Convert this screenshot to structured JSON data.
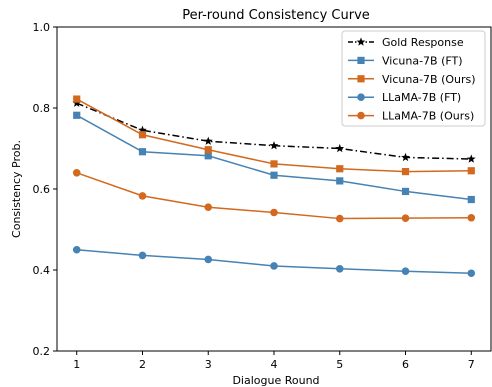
{
  "chart_data": {
    "type": "line",
    "title": "Per-round Consistency Curve",
    "xlabel": "Dialogue Round",
    "ylabel": "Consistency Prob.",
    "xlim": [
      0.7,
      7.3
    ],
    "ylim": [
      0.2,
      1.0
    ],
    "xticks": [
      "1",
      "2",
      "3",
      "4",
      "5",
      "6",
      "7"
    ],
    "yticks": [
      "0.2",
      "0.4",
      "0.6",
      "0.8",
      "1.0"
    ],
    "legend_position": "top-right",
    "grid": false,
    "x": [
      1,
      2,
      3,
      4,
      5,
      6,
      7
    ],
    "series": [
      {
        "name": "Gold Response",
        "values": [
          0.812,
          0.745,
          0.718,
          0.707,
          0.7,
          0.678,
          0.674
        ],
        "color": "#000000",
        "marker": "star",
        "line": "dashdot"
      },
      {
        "name": "Vicuna-7B (FT)",
        "values": [
          0.782,
          0.692,
          0.682,
          0.634,
          0.62,
          0.594,
          0.574
        ],
        "color": "#4682b4",
        "marker": "square",
        "line": "solid"
      },
      {
        "name": "Vicuna-7B (Ours)",
        "values": [
          0.822,
          0.734,
          0.697,
          0.662,
          0.65,
          0.643,
          0.645
        ],
        "color": "#d2691e",
        "marker": "square",
        "line": "solid"
      },
      {
        "name": "LLaMA-7B (FT)",
        "values": [
          0.45,
          0.436,
          0.426,
          0.41,
          0.403,
          0.397,
          0.392
        ],
        "color": "#4682b4",
        "marker": "circle",
        "line": "solid"
      },
      {
        "name": "LLaMA-7B (Ours)",
        "values": [
          0.64,
          0.583,
          0.555,
          0.542,
          0.527,
          0.528,
          0.529
        ],
        "color": "#d2691e",
        "marker": "circle",
        "line": "solid"
      }
    ]
  }
}
